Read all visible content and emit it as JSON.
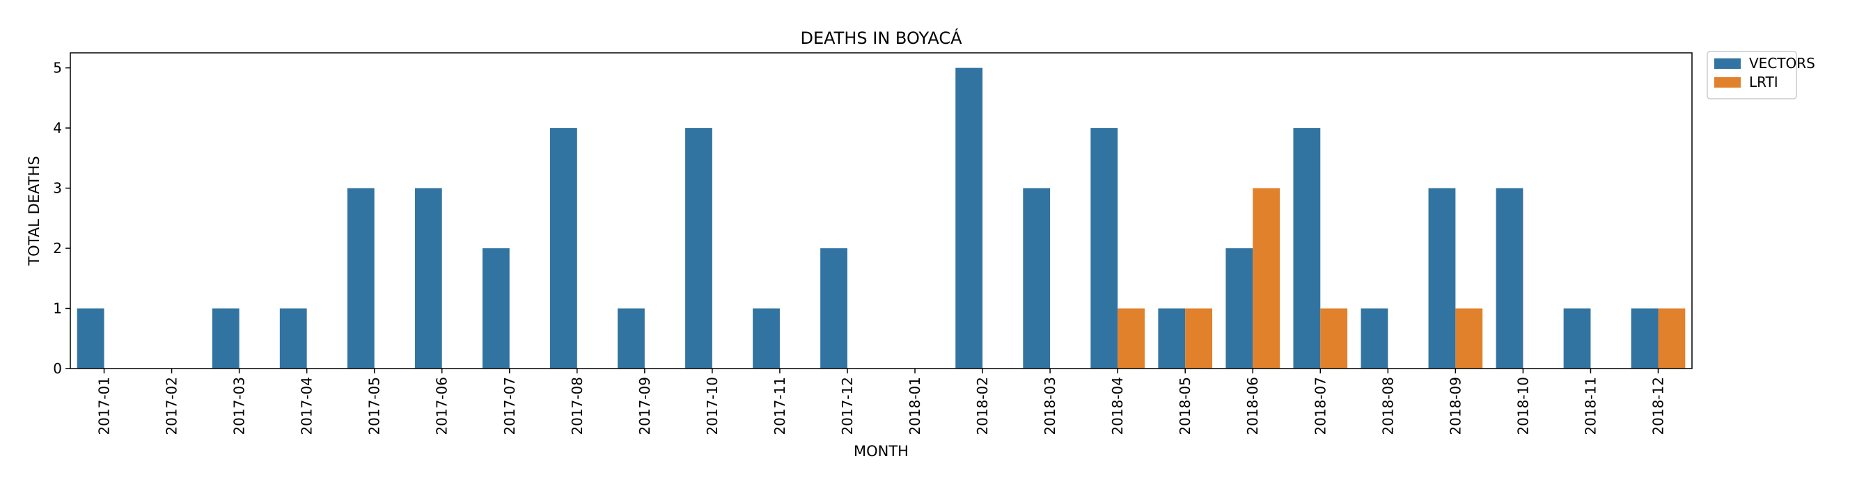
{
  "chart_data": {
    "type": "bar",
    "title": "DEATHS IN BOYACÁ",
    "xlabel": "MONTH",
    "ylabel": "TOTAL DEATHS",
    "categories": [
      "2017-01",
      "2017-02",
      "2017-03",
      "2017-04",
      "2017-05",
      "2017-06",
      "2017-07",
      "2017-08",
      "2017-09",
      "2017-10",
      "2017-11",
      "2017-12",
      "2018-01",
      "2018-02",
      "2018-03",
      "2018-04",
      "2018-05",
      "2018-06",
      "2018-07",
      "2018-08",
      "2018-09",
      "2018-10",
      "2018-11",
      "2018-12"
    ],
    "series": [
      {
        "name": "VECTORS",
        "color": "#3274a1",
        "values": [
          1,
          0,
          1,
          1,
          3,
          3,
          2,
          4,
          1,
          4,
          1,
          2,
          0,
          5,
          3,
          4,
          1,
          2,
          4,
          1,
          3,
          3,
          1,
          1
        ]
      },
      {
        "name": "LRTI",
        "color": "#e1812c",
        "values": [
          0,
          0,
          0,
          0,
          0,
          0,
          0,
          0,
          0,
          0,
          0,
          0,
          0,
          0,
          0,
          1,
          1,
          3,
          1,
          0,
          1,
          0,
          0,
          1
        ]
      }
    ],
    "ylim": [
      0,
      5.25
    ],
    "yticks": [
      0,
      1,
      2,
      3,
      4,
      5
    ],
    "grid": false,
    "legend_position": "outside top-right"
  }
}
